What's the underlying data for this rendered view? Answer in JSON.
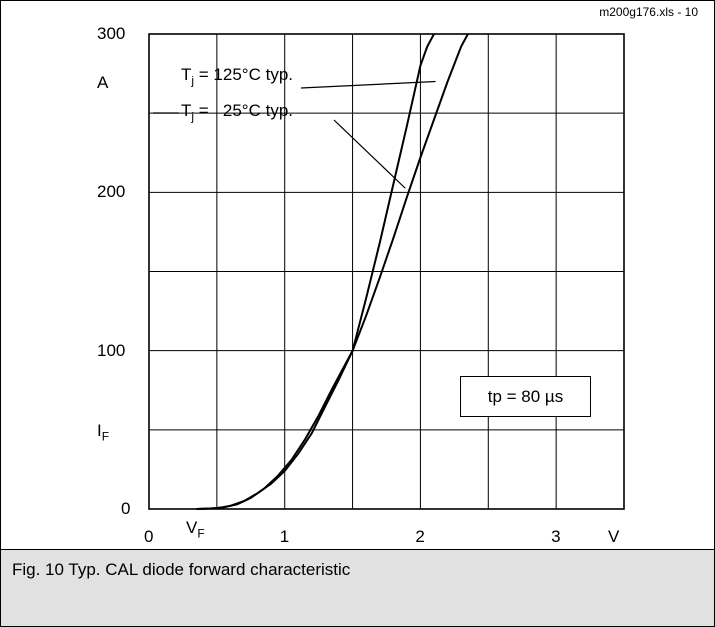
{
  "file_tag": "m200g176.xls - 10",
  "caption": "Fig. 10 Typ. CAL diode forward characteristic",
  "note": "tp = 80 µs",
  "chart_data": {
    "type": "line",
    "xlabel": {
      "symbol": "V",
      "subscript": "F",
      "unit": "V"
    },
    "ylabel": {
      "symbol": "I",
      "subscript": "F",
      "unit": "A"
    },
    "xlim": [
      0,
      3.5
    ],
    "ylim": [
      0,
      300
    ],
    "x_ticks": [
      0,
      1,
      2,
      3
    ],
    "y_ticks": [
      0,
      100,
      200,
      300
    ],
    "grid": true,
    "series": [
      {
        "label_prefix": "T",
        "label_sub": "j",
        "label_rest": " = 125°C typ.",
        "x": [
          0.35,
          0.45,
          0.55,
          0.65,
          0.75,
          0.85,
          0.95,
          1.05,
          1.15,
          1.25,
          1.35,
          1.45,
          1.5,
          1.6,
          1.7,
          1.8,
          1.9,
          2.0,
          2.1,
          2.2,
          2.3,
          2.35
        ],
        "y": [
          0,
          0.3,
          1,
          3,
          7,
          13,
          21,
          31,
          44,
          59,
          76,
          92,
          100,
          122,
          146,
          171,
          197,
          222,
          246,
          270,
          292,
          300
        ]
      },
      {
        "label_prefix": "T",
        "label_sub": "j",
        "label_rest": " =   25°C typ.",
        "x": [
          0.35,
          0.5,
          0.6,
          0.7,
          0.8,
          0.9,
          1.0,
          1.1,
          1.2,
          1.3,
          1.4,
          1.5,
          1.6,
          1.7,
          1.8,
          1.9,
          2.0,
          2.05,
          2.1
        ],
        "y": [
          0,
          0.5,
          2,
          5,
          10,
          16,
          24,
          35,
          48,
          65,
          82,
          100,
          133,
          168,
          205,
          242,
          280,
          292,
          300
        ]
      }
    ]
  }
}
